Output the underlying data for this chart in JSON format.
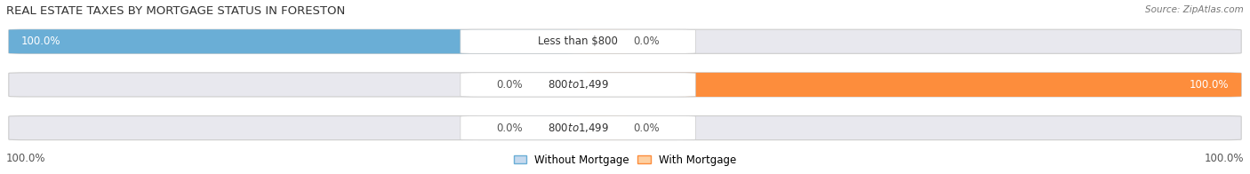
{
  "title": "REAL ESTATE TAXES BY MORTGAGE STATUS IN FORESTON",
  "source": "Source: ZipAtlas.com",
  "rows": [
    {
      "label": "Less than $800",
      "without_mortgage": 100.0,
      "with_mortgage": 0.0
    },
    {
      "label": "$800 to $1,499",
      "without_mortgage": 0.0,
      "with_mortgage": 100.0
    },
    {
      "label": "$800 to $1,499",
      "without_mortgage": 0.0,
      "with_mortgage": 0.0
    }
  ],
  "color_without": "#6aaed6",
  "color_with": "#fd8d3c",
  "color_without_light": "#c6d9ee",
  "color_with_light": "#fdd0a2",
  "bar_bg": "#e8e8ee",
  "legend_labels": [
    "Without Mortgage",
    "With Mortgage"
  ],
  "title_fontsize": 9.5,
  "bar_fontsize": 8.5,
  "legend_fontsize": 8.5,
  "axis_label_fontsize": 8.5,
  "source_fontsize": 7.5
}
